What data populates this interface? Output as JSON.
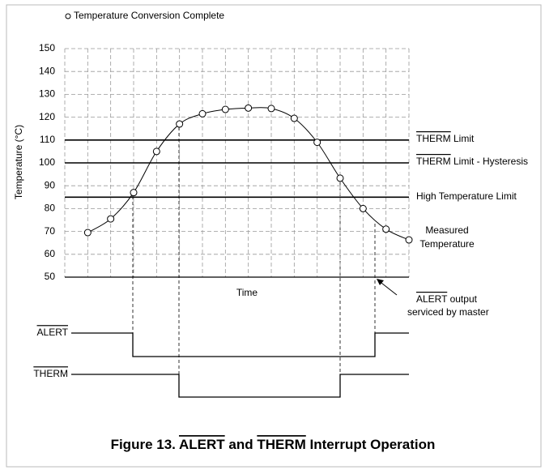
{
  "chart_data": {
    "type": "line",
    "legend": "Temperature Conversion Complete",
    "ylabel": "Temperature (°C)",
    "xlabel": "Time",
    "xlim": [
      0,
      15
    ],
    "xticks": [
      0,
      1,
      2,
      3,
      4,
      5,
      6,
      7,
      8,
      9,
      10,
      11,
      12,
      13,
      14,
      15
    ],
    "ylim": [
      50,
      150
    ],
    "yticks": [
      50,
      60,
      70,
      80,
      90,
      100,
      110,
      120,
      130,
      140,
      150
    ],
    "grid": true,
    "series": [
      {
        "name": "Measured Temperature",
        "color": "#000000",
        "x": [
          1,
          2,
          3,
          4,
          5,
          6,
          7,
          8,
          9,
          10,
          11,
          12,
          13,
          14,
          15
        ],
        "values": [
          69.5,
          75.5,
          87,
          105,
          117,
          121.5,
          123.4,
          124,
          123.8,
          119.5,
          109,
          93.3,
          80,
          71,
          66.3
        ]
      }
    ],
    "series_label": [
      "Measured",
      "Temperature"
    ],
    "limits": [
      {
        "value": 110,
        "label": [
          "THERM",
          " Limit"
        ]
      },
      {
        "value": 100,
        "label": [
          "THERM",
          " Limit - Hysteresis"
        ]
      },
      {
        "value": 85,
        "label": [
          "High Temperature Limit"
        ]
      }
    ],
    "annotation": [
      "ALERT",
      " output",
      "serviced by master"
    ],
    "signals": [
      "ALERT",
      "THERM"
    ],
    "title": [
      "Figure 13. ",
      "ALERT",
      " and ",
      "THERM",
      " Interrupt Operation"
    ]
  }
}
